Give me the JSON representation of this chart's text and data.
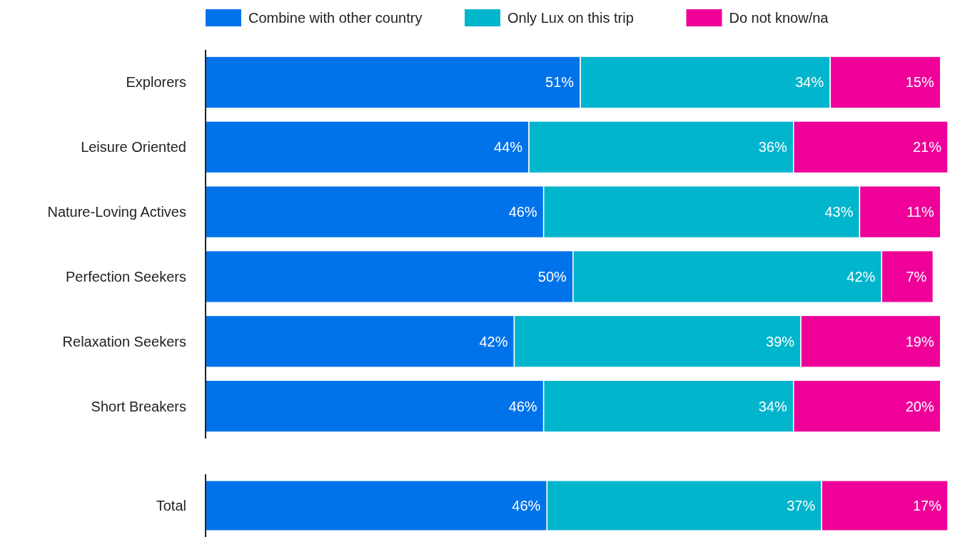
{
  "chart_data": [
    {
      "type": "bar",
      "orientation": "horizontal",
      "stacked": true,
      "legend": "top",
      "categories": [
        "Explorers",
        "Leisure Oriented",
        "Nature-Loving Actives",
        "Perfection Seekers",
        "Relaxation Seekers",
        "Short Breakers"
      ],
      "series": [
        {
          "name": "Combine with other country",
          "color": "#0073ea",
          "values": [
            51,
            44,
            46,
            50,
            42,
            46
          ],
          "value_labels": [
            "51%",
            "44%",
            "46%",
            "50%",
            "42%",
            "46%"
          ]
        },
        {
          "name": "Only Lux on this trip",
          "color": "#00b5cc",
          "values": [
            34,
            36,
            43,
            42,
            39,
            34
          ],
          "value_labels": [
            "34%",
            "36%",
            "43%",
            "42%",
            "39%",
            "34%"
          ]
        },
        {
          "name": "Do not know/na",
          "color": "#ee0099",
          "values": [
            15,
            21,
            11,
            7,
            19,
            20
          ],
          "value_labels": [
            "15%",
            "21%",
            "11%",
            "7%",
            "19%",
            "20%"
          ]
        }
      ]
    },
    {
      "type": "bar",
      "orientation": "horizontal",
      "stacked": true,
      "categories": [
        "Total"
      ],
      "series": [
        {
          "color": "#0073ea",
          "values": [
            46
          ],
          "value_labels": [
            "46%"
          ]
        },
        {
          "color": "#00b5cc",
          "values": [
            37
          ],
          "value_labels": [
            "37%"
          ]
        },
        {
          "color": "#ee0099",
          "values": [
            17
          ],
          "value_labels": [
            "17%"
          ]
        }
      ]
    }
  ]
}
